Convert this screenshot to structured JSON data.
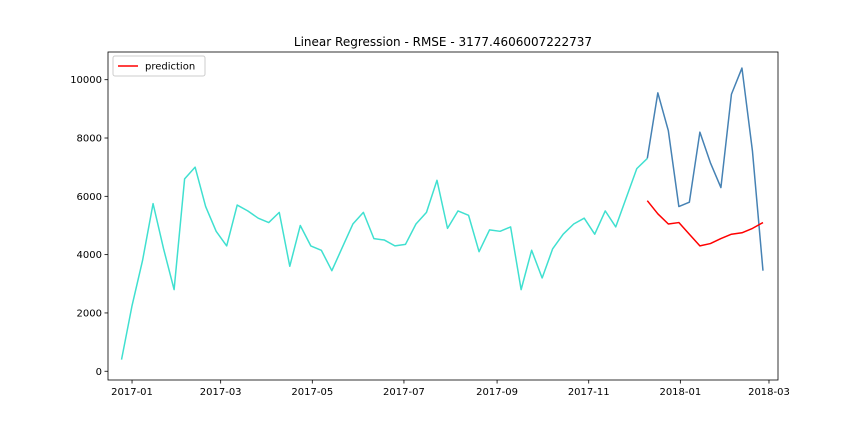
{
  "chart_data": {
    "type": "line",
    "title": "Linear Regression - RMSE - 3177.4606007222737",
    "xlabel": "",
    "ylabel": "",
    "x_axis_type": "date",
    "xlim": [
      "2016-12-16",
      "2018-03-07"
    ],
    "ylim": [
      -300,
      10950
    ],
    "x_ticks": [
      "2017-01-01",
      "2017-03-01",
      "2017-05-01",
      "2017-07-01",
      "2017-09-01",
      "2017-11-01",
      "2018-01-01",
      "2018-03-01"
    ],
    "x_tick_labels": [
      "2017-01",
      "2017-03",
      "2017-05",
      "2017-07",
      "2017-09",
      "2017-11",
      "2018-01",
      "2018-03"
    ],
    "y_ticks": [
      0,
      2000,
      4000,
      6000,
      8000,
      10000
    ],
    "y_tick_labels": [
      "0",
      "2000",
      "4000",
      "6000",
      "8000",
      "10000"
    ],
    "grid": false,
    "legend": {
      "position": "top-left",
      "entries": [
        {
          "label": "prediction",
          "color": "#ff0000"
        }
      ]
    },
    "series": [
      {
        "color": "#40e0d0",
        "dates": [
          "2016-12-25",
          "2017-01-01",
          "2017-01-08",
          "2017-01-15",
          "2017-01-22",
          "2017-01-29",
          "2017-02-05",
          "2017-02-12",
          "2017-02-19",
          "2017-02-26",
          "2017-03-05",
          "2017-03-12",
          "2017-03-19",
          "2017-03-26",
          "2017-04-02",
          "2017-04-09",
          "2017-04-16",
          "2017-04-23",
          "2017-04-30",
          "2017-05-07",
          "2017-05-14",
          "2017-05-21",
          "2017-05-28",
          "2017-06-04",
          "2017-06-11",
          "2017-06-18",
          "2017-06-25",
          "2017-07-02",
          "2017-07-09",
          "2017-07-16",
          "2017-07-23",
          "2017-07-30",
          "2017-08-06",
          "2017-08-13",
          "2017-08-20",
          "2017-08-27",
          "2017-09-03",
          "2017-09-10",
          "2017-09-17",
          "2017-09-24",
          "2017-10-01",
          "2017-10-08",
          "2017-10-15",
          "2017-10-22",
          "2017-10-29",
          "2017-11-05",
          "2017-11-12",
          "2017-11-19",
          "2017-11-26",
          "2017-12-03",
          "2017-12-10"
        ],
        "values": [
          400,
          2250,
          3800,
          5750,
          4200,
          2800,
          6600,
          7000,
          5650,
          4800,
          4300,
          5700,
          5500,
          5250,
          5100,
          5450,
          3600,
          5000,
          4300,
          4150,
          3450,
          4250,
          5050,
          5450,
          4550,
          4500,
          4300,
          4350,
          5050,
          5450,
          6550,
          4900,
          5500,
          5350,
          4100,
          4850,
          4800,
          4950,
          2800,
          4150,
          3200,
          4200,
          4700,
          5050,
          5250,
          4700,
          5500,
          4950,
          5950,
          6950,
          7300
        ]
      },
      {
        "color": "#4682b4",
        "dates": [
          "2017-12-10",
          "2017-12-17",
          "2017-12-24",
          "2017-12-31",
          "2018-01-07",
          "2018-01-14",
          "2018-01-21",
          "2018-01-28",
          "2018-02-04",
          "2018-02-11",
          "2018-02-18",
          "2018-02-25"
        ],
        "values": [
          7300,
          9550,
          8250,
          5650,
          5800,
          8200,
          7150,
          6300,
          9500,
          10400,
          7550,
          3450
        ]
      },
      {
        "name": "prediction",
        "color": "#ff0000",
        "dates": [
          "2017-12-10",
          "2017-12-17",
          "2017-12-24",
          "2017-12-31",
          "2018-01-07",
          "2018-01-14",
          "2018-01-21",
          "2018-01-28",
          "2018-02-04",
          "2018-02-11",
          "2018-02-18",
          "2018-02-25"
        ],
        "values": [
          5850,
          5400,
          5050,
          5100,
          4700,
          4300,
          4380,
          4550,
          4700,
          4750,
          4900,
          5100
        ]
      }
    ]
  }
}
